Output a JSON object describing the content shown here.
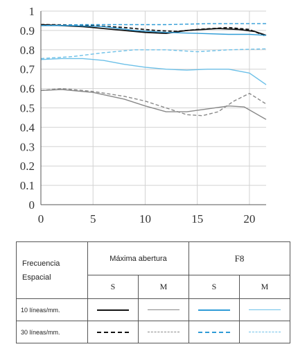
{
  "chart_data": {
    "type": "line",
    "title": "",
    "xlabel": "",
    "ylabel": "",
    "xlim": [
      0,
      21.6
    ],
    "ylim": [
      0,
      1
    ],
    "xticks": [
      "0",
      "5",
      "10",
      "15",
      "20"
    ],
    "yticks": [
      "0",
      "0.1",
      "0.2",
      "0.3",
      "0.4",
      "0.5",
      "0.6",
      "0.7",
      "0.8",
      "0.9",
      "1"
    ],
    "grid": true,
    "series": [
      {
        "color": "#111111",
        "dash": "solid",
        "points": [
          [
            0,
            0.93
          ],
          [
            4,
            0.92
          ],
          [
            7,
            0.905
          ],
          [
            10,
            0.89
          ],
          [
            12,
            0.885
          ],
          [
            14,
            0.9
          ],
          [
            17,
            0.91
          ],
          [
            19,
            0.905
          ],
          [
            20.5,
            0.895
          ],
          [
            21.6,
            0.875
          ]
        ]
      },
      {
        "color": "#111111",
        "dash": "dashed",
        "points": [
          [
            0,
            0.93
          ],
          [
            4,
            0.928
          ],
          [
            8,
            0.915
          ],
          [
            11,
            0.9
          ],
          [
            13,
            0.895
          ],
          [
            15,
            0.905
          ],
          [
            18,
            0.915
          ],
          [
            20,
            0.905
          ],
          [
            21.6,
            0.87
          ]
        ]
      },
      {
        "color": "#888888",
        "dash": "solid",
        "points": [
          [
            0,
            0.59
          ],
          [
            2,
            0.595
          ],
          [
            5,
            0.58
          ],
          [
            8,
            0.545
          ],
          [
            10,
            0.51
          ],
          [
            12,
            0.48
          ],
          [
            14,
            0.48
          ],
          [
            16,
            0.495
          ],
          [
            18,
            0.51
          ],
          [
            19.5,
            0.505
          ],
          [
            21.6,
            0.44
          ]
        ]
      },
      {
        "color": "#888888",
        "dash": "dashed",
        "points": [
          [
            0,
            0.59
          ],
          [
            2,
            0.6
          ],
          [
            5,
            0.585
          ],
          [
            8,
            0.56
          ],
          [
            10,
            0.535
          ],
          [
            12,
            0.5
          ],
          [
            14,
            0.465
          ],
          [
            15.5,
            0.46
          ],
          [
            17,
            0.48
          ],
          [
            18.5,
            0.535
          ],
          [
            20,
            0.575
          ],
          [
            21.6,
            0.52
          ]
        ]
      },
      {
        "color": "#2e9bd6",
        "dash": "solid",
        "points": [
          [
            0,
            0.925
          ],
          [
            3,
            0.925
          ],
          [
            6,
            0.92
          ],
          [
            9,
            0.9
          ],
          [
            12,
            0.89
          ],
          [
            15,
            0.885
          ],
          [
            18,
            0.88
          ],
          [
            20,
            0.88
          ],
          [
            21.6,
            0.875
          ]
        ]
      },
      {
        "color": "#2e9bd6",
        "dash": "dashed",
        "points": [
          [
            0,
            0.925
          ],
          [
            4,
            0.93
          ],
          [
            8,
            0.93
          ],
          [
            12,
            0.93
          ],
          [
            16,
            0.935
          ],
          [
            19,
            0.935
          ],
          [
            21.6,
            0.935
          ]
        ]
      },
      {
        "color": "#6cc0e8",
        "dash": "solid",
        "points": [
          [
            0,
            0.75
          ],
          [
            2,
            0.755
          ],
          [
            4,
            0.755
          ],
          [
            6,
            0.745
          ],
          [
            8,
            0.725
          ],
          [
            10,
            0.71
          ],
          [
            12,
            0.7
          ],
          [
            14,
            0.695
          ],
          [
            16,
            0.7
          ],
          [
            18,
            0.7
          ],
          [
            20,
            0.68
          ],
          [
            21.6,
            0.62
          ]
        ]
      },
      {
        "color": "#6cc0e8",
        "dash": "dashed",
        "points": [
          [
            0,
            0.755
          ],
          [
            3,
            0.765
          ],
          [
            6,
            0.785
          ],
          [
            9,
            0.8
          ],
          [
            12,
            0.8
          ],
          [
            15,
            0.79
          ],
          [
            18,
            0.8
          ],
          [
            21.6,
            0.805
          ]
        ]
      }
    ]
  },
  "legend": {
    "freq_label_line1": "Frecuencia",
    "freq_label_line2": "Espacial",
    "max_aperture": "Máxima abertura",
    "f8": "F8",
    "s": "S",
    "m": "M",
    "row_10": "10 líneas/mm.",
    "row_30": "30 líneas/mm.",
    "colors": {
      "black": "#111111",
      "gray": "#888888",
      "blue": "#2e9bd6",
      "lightblue": "#6cc0e8"
    }
  }
}
